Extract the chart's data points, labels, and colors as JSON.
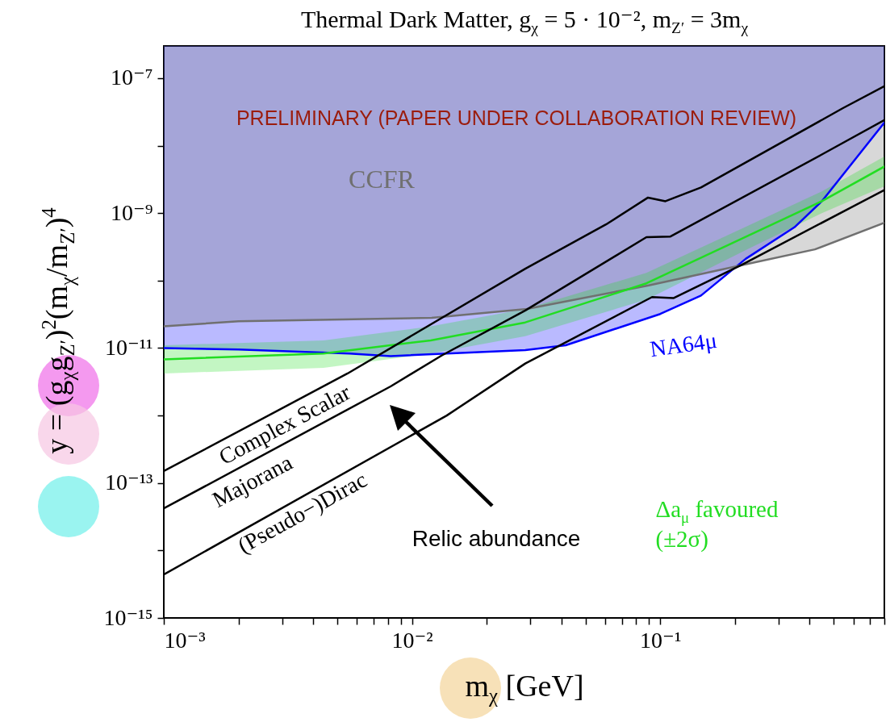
{
  "chart_data": {
    "type": "line",
    "title": "Thermal Dark Matter, g$_{χ}$ = 5 · 10⁻², m$_{Z′}$ = 3m$_{χ}$",
    "xlabel": "m$_{χ}$ [GeV]",
    "ylabel": "y = (g$_{χ}$g$_{Z′}$)$^{2}$(m$_{χ}$/m$_{Z′}$)$^{4}$",
    "log": "xy",
    "grid": false,
    "xlim": [
      0.001,
      0.8
    ],
    "ylim": [
      1e-15,
      3e-07
    ],
    "xticks": [
      {
        "value": 0.001,
        "label": "10⁻³"
      },
      {
        "value": 0.002,
        "label": null
      },
      {
        "value": 0.003,
        "label": null
      },
      {
        "value": 0.004,
        "label": null
      },
      {
        "value": 0.005,
        "label": null
      },
      {
        "value": 0.006,
        "label": null
      },
      {
        "value": 0.007,
        "label": null
      },
      {
        "value": 0.008,
        "label": null
      },
      {
        "value": 0.009,
        "label": null
      },
      {
        "value": 0.01,
        "label": "10⁻²"
      },
      {
        "value": 0.02,
        "label": null
      },
      {
        "value": 0.03,
        "label": null
      },
      {
        "value": 0.04,
        "label": null
      },
      {
        "value": 0.05,
        "label": null
      },
      {
        "value": 0.06,
        "label": null
      },
      {
        "value": 0.07,
        "label": null
      },
      {
        "value": 0.08,
        "label": null
      },
      {
        "value": 0.09,
        "label": null
      },
      {
        "value": 0.1,
        "label": "10⁻¹"
      },
      {
        "value": 0.2,
        "label": null
      },
      {
        "value": 0.3,
        "label": null
      },
      {
        "value": 0.4,
        "label": null
      },
      {
        "value": 0.5,
        "label": null
      },
      {
        "value": 0.6,
        "label": null
      },
      {
        "value": 0.7,
        "label": null
      },
      {
        "value": 0.8,
        "label": null
      }
    ],
    "yticks": [
      {
        "value": 1e-15,
        "label": "10⁻¹⁵"
      },
      {
        "value": 1e-14,
        "label": null
      },
      {
        "value": 1e-13,
        "label": "10⁻¹³"
      },
      {
        "value": 1e-12,
        "label": null
      },
      {
        "value": 1e-11,
        "label": "10⁻¹¹"
      },
      {
        "value": 1e-10,
        "label": null
      },
      {
        "value": 1e-09,
        "label": "10⁻⁹"
      },
      {
        "value": 1e-08,
        "label": null
      },
      {
        "value": 1e-07,
        "label": "10⁻⁷"
      }
    ],
    "annotations": [
      "PRELIMINARY (PAPER UNDER COLLABORATION REVIEW)",
      "Relic abundance"
    ],
    "series": [
      {
        "name": "NA64μ",
        "color": "#0000ff",
        "x": [
          0.001,
          0.002,
          0.0056,
          0.0082,
          0.0286,
          0.0416,
          0.1,
          0.146,
          0.221,
          0.348,
          0.448,
          0.8
        ],
        "values": [
          1e-11,
          9.5e-12,
          8.3e-12,
          7.6e-12,
          9.3e-12,
          1.1e-11,
          3.2e-11,
          6e-11,
          2.1e-10,
          6.2e-10,
          1.5e-09,
          2.2e-08
        ],
        "lower": [
          1e-11,
          9.5e-12,
          8.3e-12,
          7.6e-12,
          9.3e-12,
          1.1e-11,
          3.2e-11,
          6e-11,
          2.1e-10,
          6.2e-10,
          1.5e-09,
          2.2e-08
        ],
        "upper": [
          3e-07,
          3e-07,
          3e-07,
          3e-07,
          3e-07,
          3e-07,
          3e-07,
          3e-07,
          3e-07,
          3e-07,
          3e-07,
          3e-07
        ]
      },
      {
        "name": "CCFR",
        "color": "#707070",
        "x": [
          0.001,
          0.002,
          0.012,
          0.029,
          0.09,
          0.23,
          0.42,
          0.8
        ],
        "values": [
          2.1e-11,
          2.5e-11,
          2.8e-11,
          3.8e-11,
          8.5e-11,
          1.8e-10,
          2.9e-10,
          7.2e-10
        ],
        "lower": [
          2.1e-11,
          2.5e-11,
          2.8e-11,
          3.8e-11,
          8.5e-11,
          1.8e-10,
          2.9e-10,
          7.2e-10
        ],
        "upper": [
          3e-07,
          3e-07,
          3e-07,
          3e-07,
          3e-07,
          3e-07,
          3e-07,
          3e-07
        ]
      },
      {
        "name": "Δa$_{μ}$ favoured (±2σ)",
        "color": "#22dd22",
        "x": [
          0.001,
          0.0044,
          0.0119,
          0.0286,
          0.088,
          0.228,
          0.448,
          0.8
        ],
        "values": [
          6.8e-12,
          8.3e-12,
          1.3e-11,
          2.4e-11,
          9.1e-11,
          4.7e-10,
          1.5e-09,
          4.9e-09
        ],
        "lower": [
          4.2e-12,
          5.1e-12,
          8.3e-12,
          1.5e-11,
          5.2e-11,
          3e-10,
          1e-09,
          2.5e-09
        ],
        "upper": [
          1.1e-11,
          1.3e-11,
          2.1e-11,
          3.8e-11,
          1.3e-10,
          6.6e-10,
          2.1e-09,
          6.9e-09
        ]
      },
      {
        "name": "Complex Scalar",
        "color": "#000000",
        "x": [
          0.001,
          0.0055,
          0.0286,
          0.0605,
          0.0893,
          0.105,
          0.146,
          0.545,
          0.8
        ],
        "values": [
          1.5e-13,
          4.2e-12,
          1.5e-10,
          6.8e-10,
          1.7e-09,
          1.5e-09,
          2.4e-09,
          3.6e-08,
          7.6e-08
        ]
      },
      {
        "name": "Majorana",
        "color": "#000000",
        "x": [
          0.001,
          0.0082,
          0.0132,
          0.0286,
          0.088,
          0.11,
          0.448,
          0.8
        ],
        "values": [
          4.2e-14,
          2.7e-12,
          7.8e-12,
          3.6e-11,
          4.4e-10,
          4.5e-10,
          7.4e-09,
          2.4e-08
        ]
      },
      {
        "name": "(Pseudo−)Dirac",
        "color": "#000000",
        "x": [
          0.001,
          0.0138,
          0.0286,
          0.0927,
          0.113,
          0.212,
          0.8
        ],
        "values": [
          4.4e-15,
          1e-12,
          5.9e-12,
          5.7e-11,
          5.5e-11,
          1.7e-10,
          2.2e-09
        ]
      }
    ]
  }
}
